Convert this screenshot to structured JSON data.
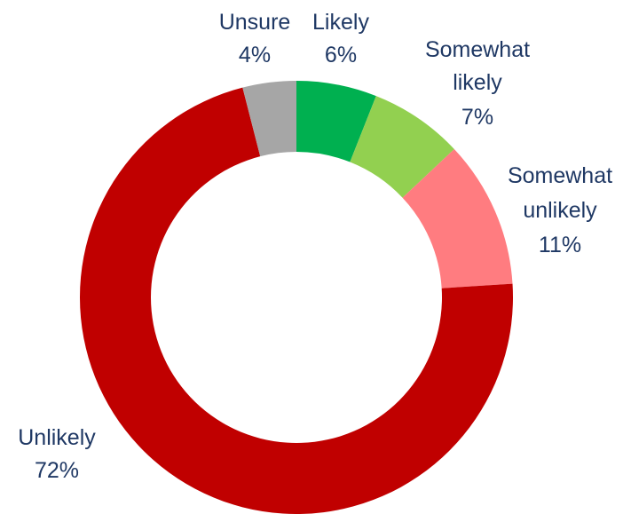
{
  "chart_data": {
    "type": "pie",
    "variant": "donut",
    "title": "",
    "legend": "none",
    "slices": [
      {
        "name": "Likely",
        "value": 6,
        "display": "6%",
        "color": "#00b050"
      },
      {
        "name": "Somewhat likely",
        "value": 7,
        "display": "7%",
        "color": "#92d050"
      },
      {
        "name": "Somewhat unlikely",
        "value": 11,
        "display": "11%",
        "color": "#ff7c80"
      },
      {
        "name": "Unlikely",
        "value": 72,
        "display": "72%",
        "color": "#c00000"
      },
      {
        "name": "Unsure",
        "value": 4,
        "display": "4%",
        "color": "#a6a6a6"
      }
    ]
  }
}
